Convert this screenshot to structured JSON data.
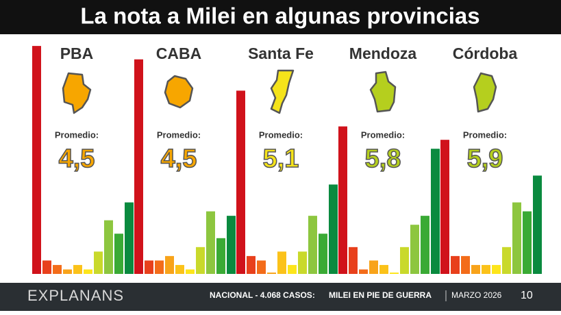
{
  "header": {
    "title": "La nota a Milei en algunas provincias"
  },
  "chart_data": [
    {
      "type": "bar",
      "title": "PBA",
      "subtitle": "Promedio:",
      "average": "4,5",
      "map_color": "#f7a600",
      "values": [
        51,
        3,
        2,
        1,
        2,
        1,
        5,
        12,
        9,
        16
      ],
      "colors": [
        "#d0121b",
        "#e8401c",
        "#f36c1a",
        "#f8a31a",
        "#fbc21a",
        "#fde51b",
        "#c9d92b",
        "#8dc63f",
        "#3aaa35",
        "#0a8a3f"
      ],
      "ylim": [
        0,
        55
      ]
    },
    {
      "type": "bar",
      "title": "CABA",
      "subtitle": "Promedio:",
      "average": "4,5",
      "map_color": "#f7a600",
      "values": [
        48,
        3,
        3,
        4,
        2,
        1,
        6,
        14,
        8,
        13
      ],
      "colors": [
        "#d0121b",
        "#e8401c",
        "#f36c1a",
        "#f8a31a",
        "#fbc21a",
        "#fde51b",
        "#c9d92b",
        "#8dc63f",
        "#3aaa35",
        "#0a8a3f"
      ],
      "ylim": [
        0,
        55
      ]
    },
    {
      "type": "bar",
      "title": "Santa Fe",
      "subtitle": "Promedio:",
      "average": "5,1",
      "map_color": "#f5e31a",
      "values": [
        41,
        4,
        3,
        0.3,
        5,
        2,
        5,
        13,
        9,
        20
      ],
      "colors": [
        "#d0121b",
        "#e8401c",
        "#f36c1a",
        "#f8a31a",
        "#fbc21a",
        "#fde51b",
        "#c9d92b",
        "#8dc63f",
        "#3aaa35",
        "#0a8a3f"
      ],
      "ylim": [
        0,
        55
      ]
    },
    {
      "type": "bar",
      "title": "Mendoza",
      "subtitle": "Promedio:",
      "average": "5,8",
      "map_color": "#b5cf1e",
      "values": [
        33,
        6,
        1,
        3,
        2,
        0.3,
        6,
        11,
        13,
        28
      ],
      "colors": [
        "#d0121b",
        "#e8401c",
        "#f36c1a",
        "#f8a31a",
        "#fbc21a",
        "#fde51b",
        "#c9d92b",
        "#8dc63f",
        "#3aaa35",
        "#0a8a3f"
      ],
      "ylim": [
        0,
        55
      ]
    },
    {
      "type": "bar",
      "title": "Córdoba",
      "subtitle": "Promedio:",
      "average": "5,9",
      "map_color": "#b5cf1e",
      "values": [
        30,
        4,
        4,
        2,
        2,
        2,
        6,
        16,
        14,
        22
      ],
      "colors": [
        "#d0121b",
        "#e8401c",
        "#f36c1a",
        "#f8a31a",
        "#fbc21a",
        "#fde51b",
        "#c9d92b",
        "#8dc63f",
        "#3aaa35",
        "#0a8a3f"
      ],
      "ylim": [
        0,
        55
      ]
    }
  ],
  "footer": {
    "brand": "EXPLANANS",
    "survey": "NACIONAL - 4.068 CASOS:",
    "headline": "MILEI EN PIE DE GUERRA",
    "date": "MARZO 2026",
    "page": "10"
  }
}
